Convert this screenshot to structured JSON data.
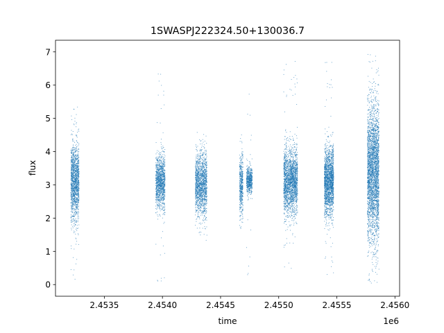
{
  "chart_data": {
    "type": "scatter",
    "title": "1SWASPJ222324.50+130036.7",
    "xlabel": "time",
    "ylabel": "flux",
    "x_offset_label": "1e6",
    "xlim": [
      2.45308,
      2.45604
    ],
    "ylim": [
      -0.35,
      7.35
    ],
    "x_ticks": [
      2.4535,
      2.454,
      2.4545,
      2.455,
      2.4555,
      2.456
    ],
    "x_tick_labels": [
      "2.4535",
      "2.4540",
      "2.4545",
      "2.4550",
      "2.4555",
      "2.4560"
    ],
    "y_ticks": [
      0,
      1,
      2,
      3,
      4,
      5,
      6,
      7
    ],
    "y_tick_labels": [
      "0",
      "1",
      "2",
      "3",
      "4",
      "5",
      "6",
      "7"
    ],
    "grid": false,
    "marker_color": "#1f77b4",
    "observing_seasons": [
      {
        "x_start": 2.45321,
        "x_end": 2.45328,
        "center": 3.1,
        "spread": 0.55,
        "y_min": 0.15,
        "y_max": 5.4,
        "points": 1500
      },
      {
        "x_start": 2.45394,
        "x_end": 2.45402,
        "center": 3.1,
        "spread": 0.4,
        "y_min": 0.0,
        "y_max": 6.35,
        "points": 1300
      },
      {
        "x_start": 2.45428,
        "x_end": 2.45438,
        "center": 3.0,
        "spread": 0.45,
        "y_min": 1.3,
        "y_max": 4.6,
        "points": 1600
      },
      {
        "x_start": 2.45466,
        "x_end": 2.45469,
        "center": 3.0,
        "spread": 0.45,
        "y_min": 1.4,
        "y_max": 4.6,
        "points": 500
      },
      {
        "x_start": 2.45472,
        "x_end": 2.45477,
        "center": 3.15,
        "spread": 0.2,
        "y_min": 0.2,
        "y_max": 6.1,
        "points": 600
      },
      {
        "x_start": 2.45504,
        "x_end": 2.45516,
        "center": 3.1,
        "spread": 0.5,
        "y_min": 0.4,
        "y_max": 6.8,
        "points": 2200
      },
      {
        "x_start": 2.45539,
        "x_end": 2.45547,
        "center": 3.1,
        "spread": 0.5,
        "y_min": 0.3,
        "y_max": 6.8,
        "points": 2000
      },
      {
        "x_start": 2.45576,
        "x_end": 2.45586,
        "center": 3.4,
        "spread": 1.0,
        "y_min": 0.05,
        "y_max": 6.95,
        "points": 3200
      }
    ]
  }
}
